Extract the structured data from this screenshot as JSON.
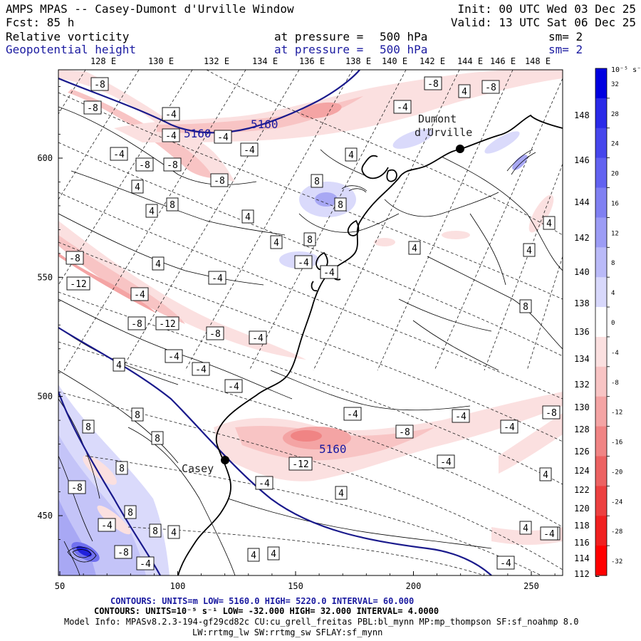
{
  "header": {
    "title": "AMPS MPAS -- Casey-Dumont d'Urville Window",
    "init": "Init: 00 UTC Wed 03 Dec 25",
    "forecast": "Fcst:   85 h",
    "valid": "Valid: 13 UTC Sat 06 Dec 25",
    "fields": [
      {
        "name": "Relative vorticity",
        "pressure_label": "at pressure =",
        "pressure": "500 hPa",
        "smooth": "sm= 2",
        "color": "#000000"
      },
      {
        "name": "Geopotential height",
        "pressure_label": "at pressure =",
        "pressure": "500 hPa",
        "smooth": "sm= 2",
        "color": "#1a1aa0"
      }
    ]
  },
  "map": {
    "top_lon_labels": [
      "128 E",
      "130 E",
      "132 E",
      "134 E",
      "136 E",
      "138 E",
      "140 E",
      "142 E",
      "144 E",
      "146 E",
      "148 E"
    ],
    "right_lon_labels": [
      "148 E",
      "146 E",
      "144 E",
      "142 E",
      "140 E",
      "138 E",
      "136 E",
      "134 E",
      "132 E",
      "130 E",
      "128 E",
      "126 E",
      "124 E",
      "122 E",
      "120 E",
      "118 E",
      "116 E",
      "114 E",
      "112 E"
    ],
    "y_axis": [
      600,
      550,
      500,
      450
    ],
    "x_axis": [
      50,
      100,
      150,
      200,
      250
    ],
    "stations": [
      {
        "name": "Casey"
      },
      {
        "name": "Dumont d'Urville"
      }
    ],
    "height_labels": [
      5160,
      5160,
      5160
    ],
    "vorticity_labels": [
      "-8",
      "-8",
      "-4",
      "-4",
      "-4",
      "-4",
      "-8",
      "-8",
      "-4",
      "-8",
      "-8",
      "-8",
      "4",
      "4",
      "4",
      "8",
      "4",
      "-4",
      "4",
      "8",
      "8",
      "4",
      "8",
      "4",
      "-4",
      "-4",
      "4",
      "-8",
      "-12",
      "-4",
      "-8",
      "-12",
      "-8",
      "-4",
      "-4",
      "-4",
      "4",
      "-4",
      "-4",
      "4",
      "8",
      "4",
      "8",
      "8",
      "8",
      "-8",
      "-4",
      "-8",
      "-4",
      "-8",
      "-4",
      "-12",
      "-4",
      "-4",
      "-8",
      "8",
      "8",
      "8",
      "-4",
      "4",
      "4",
      "4",
      "4",
      "-4",
      "-4",
      "4",
      "4",
      "-4",
      "-4",
      "-4"
    ]
  },
  "colorbar": {
    "unit": "10⁻⁵ s⁻¹",
    "labels": [
      "32",
      "28",
      "24",
      "20",
      "16",
      "12",
      "8",
      "4",
      "0",
      "-4",
      "-8",
      "-12",
      "-16",
      "-20",
      "-24",
      "-28",
      "-32"
    ],
    "colors": [
      "#0000e0",
      "#2a2ae8",
      "#4646ec",
      "#6262f0",
      "#8080f2",
      "#9c9cf5",
      "#babaf8",
      "#d8d8fb",
      "#ffffff",
      "#fbe0e0",
      "#f8c4c4",
      "#f4a4a4",
      "#f08484",
      "#ec6262",
      "#ec4040",
      "#f02020",
      "#ff0000"
    ]
  },
  "footer": {
    "line1_a": "CONTOURS:  UNITS=m  LOW=  5160.0        HIGH=  5220.0        INTERVAL=   60.000",
    "line2": "CONTOURS:  UNITS=10⁻⁵ s⁻¹   LOW=  -32.000       HIGH=  32.000       INTERVAL=   4.0000",
    "line3": "Model Info: MPASv8.2.3-194-gf29cd82c CU:cu_grell_freitas PBL:bl_mynn MP:mp_thompson SF:sf_noahmp 8.0",
    "line4": "LW:rrtmg_lw SW:rrtmg_sw SFLAY:sf_mynn"
  }
}
